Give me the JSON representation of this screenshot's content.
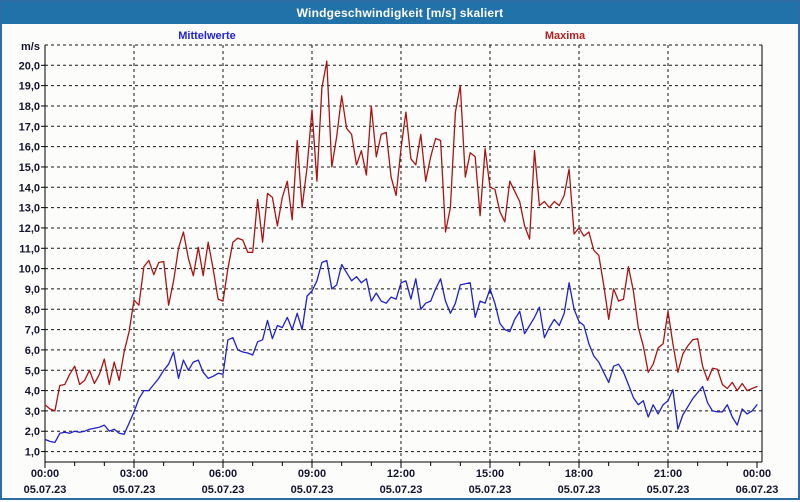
{
  "window": {
    "title": "Windgeschwindigkeit [m/s] skaliert"
  },
  "legend": {
    "mean_label": "Mittelwerte",
    "max_label": "Maxima",
    "mean_color": "#2323d6",
    "max_color": "#b22020"
  },
  "chart_data": {
    "type": "line",
    "title": "Windgeschwindigkeit [m/s] skaliert",
    "ylabel": "m/s",
    "ylim": [
      1.0,
      20.0
    ],
    "y_tick_step": 1.0,
    "y_tick_labels": [
      "1,0",
      "2,0",
      "3,0",
      "4,0",
      "5,0",
      "6,0",
      "7,0",
      "8,0",
      "9,0",
      "10,0",
      "11,0",
      "12,0",
      "13,0",
      "14,0",
      "15,0",
      "16,0",
      "17,0",
      "18,0",
      "19,0",
      "20,0"
    ],
    "x_range_hours": [
      0,
      24
    ],
    "x_major_tick_hours": 3,
    "x_minor_tick_hours": 1,
    "x_ticks": [
      {
        "time": "00:00",
        "date": "05.07.23"
      },
      {
        "time": "03:00",
        "date": "05.07.23"
      },
      {
        "time": "06:00",
        "date": "05.07.23"
      },
      {
        "time": "09:00",
        "date": "05.07.23"
      },
      {
        "time": "12:00",
        "date": "05.07.23"
      },
      {
        "time": "15:00",
        "date": "05.07.23"
      },
      {
        "time": "18:00",
        "date": "05.07.23"
      },
      {
        "time": "21:00",
        "date": "05.07.23"
      },
      {
        "time": "00:00",
        "date": "06.07.23"
      }
    ],
    "grid": {
      "horizontal": "dashed every 1.0 m/s",
      "vertical": "dashed every 3 h"
    },
    "legend_position": "top",
    "sample_interval_minutes": 10,
    "series": [
      {
        "name": "Mittelwerte",
        "color": "#2020cc",
        "values": [
          1.6,
          1.5,
          1.45,
          1.9,
          1.95,
          1.9,
          2.0,
          1.95,
          2.0,
          2.1,
          2.15,
          2.2,
          2.3,
          2.0,
          2.1,
          1.9,
          1.85,
          2.4,
          2.95,
          3.6,
          4.0,
          4.0,
          4.3,
          4.6,
          5.0,
          5.3,
          5.9,
          4.6,
          5.5,
          5.0,
          5.4,
          5.5,
          4.9,
          4.6,
          4.7,
          4.85,
          4.8,
          6.5,
          6.6,
          6.0,
          5.9,
          5.85,
          5.75,
          6.4,
          6.5,
          7.45,
          6.55,
          7.2,
          7.1,
          7.6,
          7.0,
          7.8,
          7.0,
          8.65,
          8.9,
          9.4,
          10.3,
          10.4,
          9.0,
          9.2,
          10.2,
          9.8,
          9.4,
          9.6,
          9.3,
          9.5,
          8.4,
          8.8,
          8.4,
          8.3,
          8.6,
          8.5,
          9.3,
          9.4,
          8.5,
          9.5,
          8.0,
          8.3,
          8.4,
          9.0,
          9.5,
          8.4,
          7.8,
          8.3,
          9.2,
          9.25,
          9.3,
          7.6,
          8.4,
          8.3,
          9.0,
          8.3,
          7.3,
          7.0,
          6.9,
          7.5,
          7.9,
          6.8,
          7.2,
          7.6,
          8.1,
          6.6,
          7.1,
          7.5,
          7.2,
          7.8,
          9.3,
          8.0,
          7.4,
          7.2,
          6.3,
          5.7,
          5.4,
          4.9,
          4.4,
          5.2,
          5.3,
          4.9,
          4.3,
          3.65,
          3.3,
          3.5,
          2.7,
          3.3,
          2.85,
          3.3,
          3.5,
          4.05,
          2.1,
          2.8,
          3.2,
          3.6,
          3.9,
          4.2,
          3.4,
          3.0,
          2.95,
          2.95,
          3.3,
          2.7,
          2.3,
          3.1,
          2.85,
          3.0,
          3.3
        ]
      },
      {
        "name": "Maxima",
        "color": "#aa1414",
        "values": [
          3.3,
          3.1,
          3.0,
          4.25,
          4.3,
          4.8,
          5.2,
          4.3,
          4.5,
          5.0,
          4.35,
          4.8,
          5.55,
          4.3,
          5.4,
          4.5,
          5.9,
          6.9,
          8.45,
          8.2,
          10.1,
          10.4,
          9.7,
          10.3,
          10.35,
          8.2,
          9.4,
          11.0,
          11.8,
          10.5,
          9.65,
          11.05,
          9.65,
          11.3,
          10.0,
          8.5,
          8.4,
          10.0,
          11.3,
          11.5,
          11.4,
          10.8,
          10.8,
          13.4,
          11.3,
          13.7,
          13.5,
          12.1,
          13.5,
          14.3,
          12.4,
          16.3,
          13.0,
          15.0,
          17.8,
          14.3,
          18.9,
          20.2,
          15.0,
          16.5,
          18.5,
          16.9,
          16.6,
          15.1,
          15.8,
          14.6,
          18.0,
          15.5,
          16.6,
          16.7,
          14.5,
          13.6,
          15.9,
          17.7,
          15.4,
          15.1,
          16.6,
          14.3,
          15.5,
          16.4,
          16.3,
          11.8,
          13.0,
          17.7,
          19.0,
          14.5,
          15.7,
          15.5,
          12.6,
          15.9,
          14.0,
          13.9,
          12.8,
          12.3,
          14.3,
          13.8,
          13.3,
          12.1,
          11.45,
          15.8,
          13.1,
          13.3,
          13.0,
          13.3,
          13.1,
          13.6,
          14.9,
          11.7,
          12.0,
          11.6,
          11.8,
          10.9,
          10.65,
          9.2,
          7.5,
          9.0,
          8.4,
          8.5,
          10.1,
          8.9,
          7.1,
          6.2,
          4.9,
          5.3,
          6.1,
          6.3,
          7.9,
          6.3,
          4.9,
          5.8,
          6.2,
          6.5,
          6.55,
          5.2,
          4.5,
          5.1,
          5.05,
          4.3,
          4.1,
          4.4,
          4.0,
          4.35,
          4.0,
          4.1,
          4.2
        ]
      }
    ]
  }
}
